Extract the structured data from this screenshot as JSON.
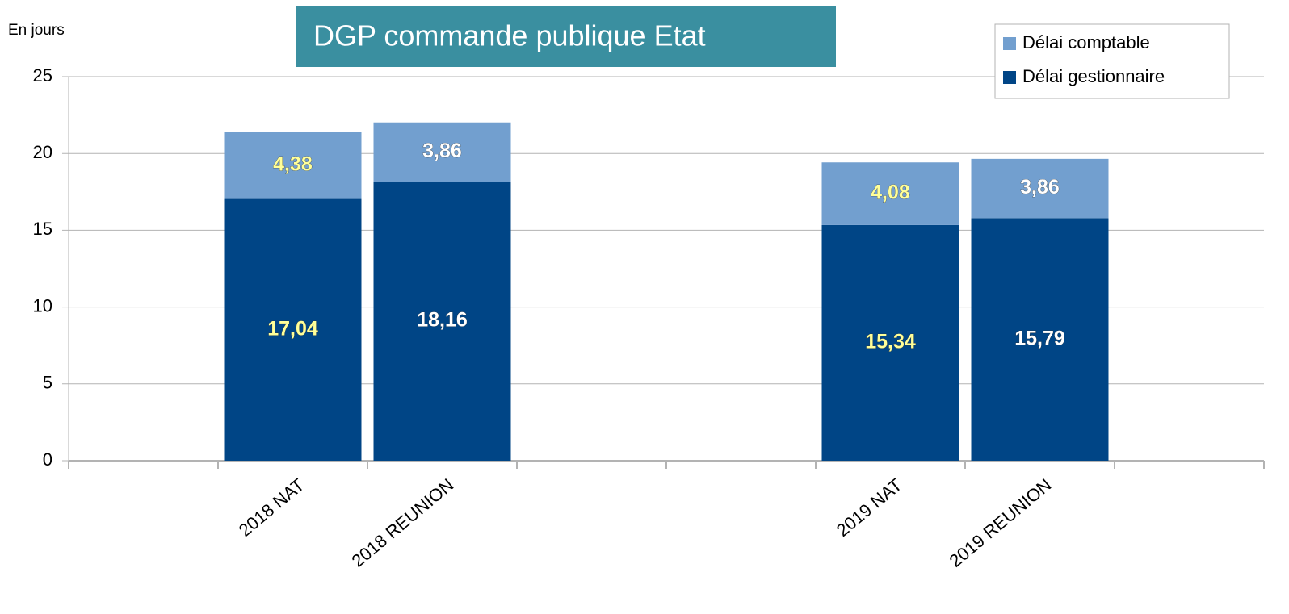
{
  "chart_data": {
    "type": "stacked_bar",
    "title": "DGP commande publique Etat",
    "y_label": "En jours",
    "categories": [
      null,
      "2018 NAT",
      "2018 REUNION",
      null,
      null,
      "2019 NAT",
      "2019 REUNION",
      null
    ],
    "series": [
      {
        "name": "Délai gestionnaire",
        "color": "#004586",
        "values": [
          null,
          17.04,
          18.16,
          null,
          null,
          15.34,
          15.79,
          null
        ],
        "value_labels": [
          null,
          "17,04",
          "18,16",
          null,
          null,
          "15,34",
          "15,79",
          null
        ],
        "label_colors": [
          null,
          "#ffff99",
          "#ffffff",
          null,
          null,
          "#ffff99",
          "#ffffff",
          null
        ]
      },
      {
        "name": "Délai comptable",
        "color": "#729fcf",
        "values": [
          null,
          4.38,
          3.86,
          null,
          null,
          4.08,
          3.86,
          null
        ],
        "value_labels": [
          null,
          "4,38",
          "3,86",
          null,
          null,
          "4,08",
          "3,86",
          null
        ],
        "label_colors": [
          null,
          "#ffff99",
          "#ffffff",
          null,
          null,
          "#ffff99",
          "#ffffff",
          null
        ]
      }
    ],
    "ylim": [
      0,
      25
    ],
    "yticks": [
      0,
      5,
      10,
      15,
      20,
      25
    ],
    "grid": true,
    "legend": "top-right"
  }
}
